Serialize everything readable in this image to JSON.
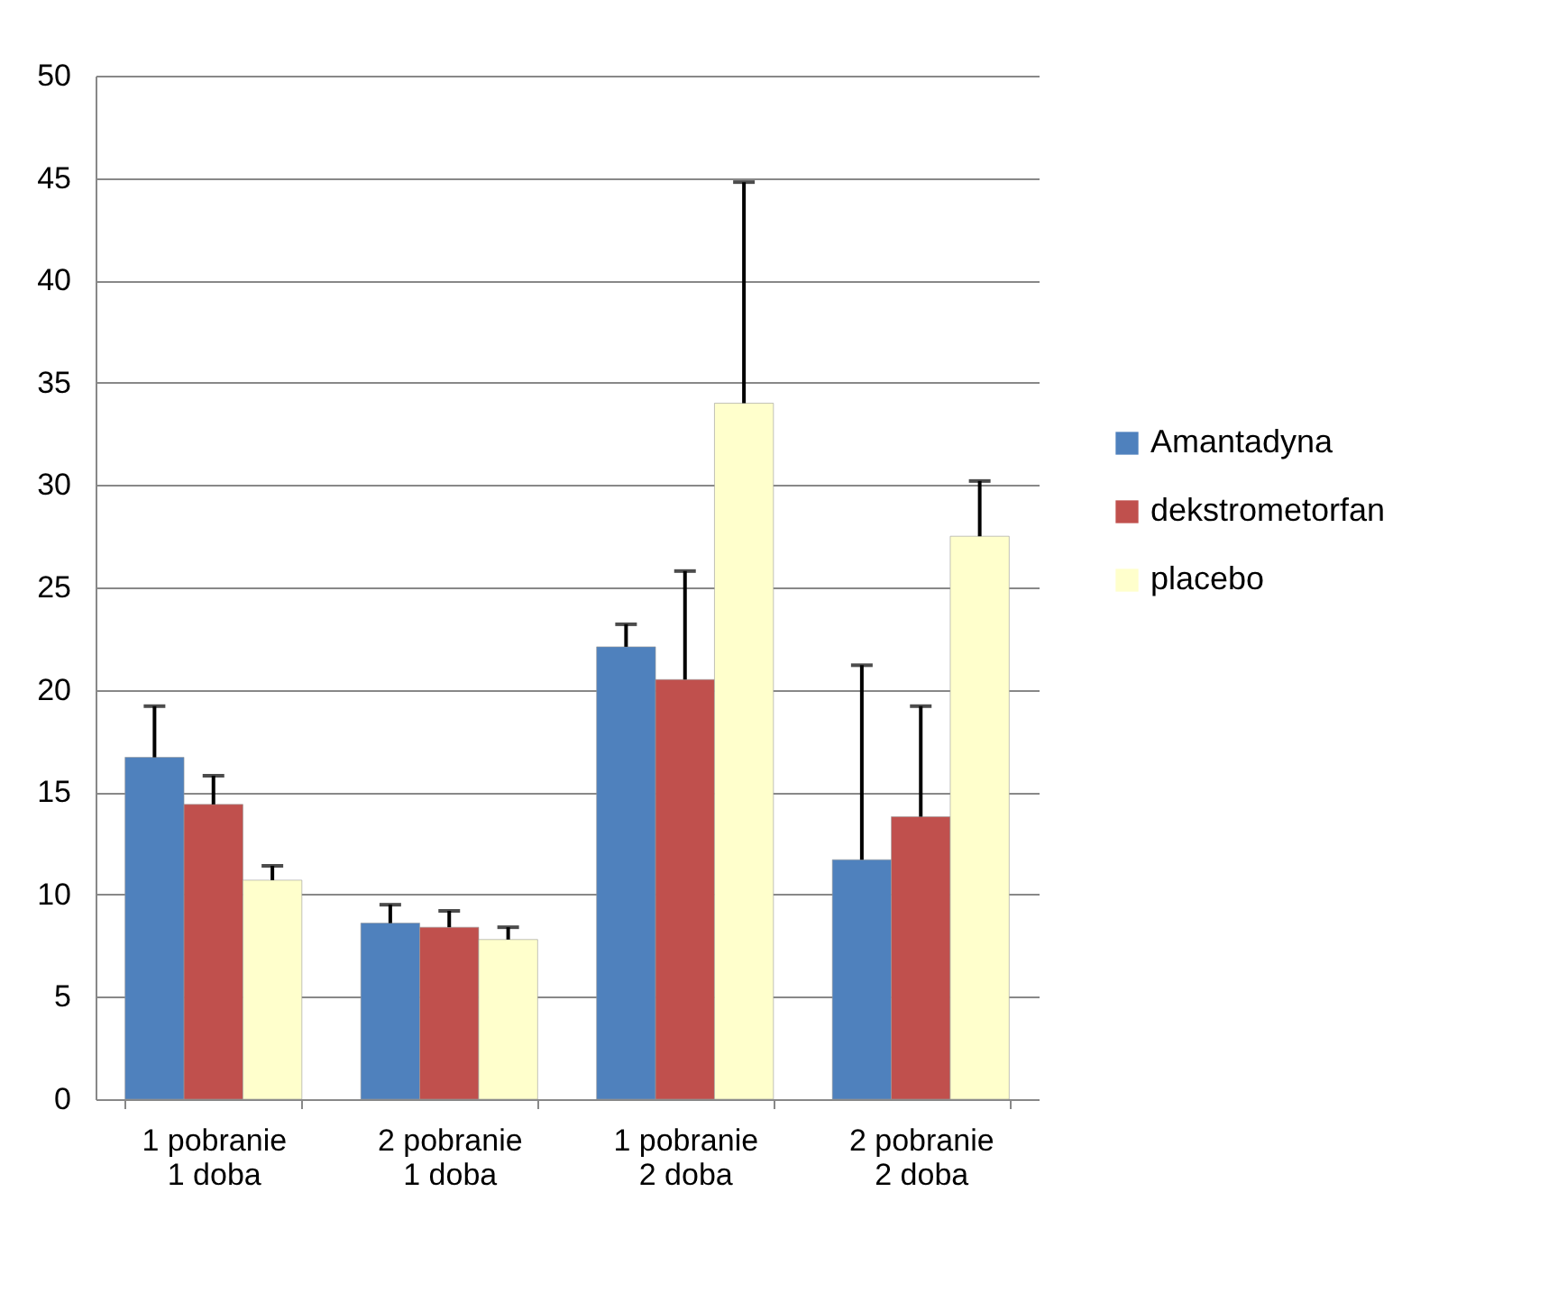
{
  "chart_data": {
    "type": "bar",
    "categories": [
      "1 pobranie\n1 doba",
      "2 pobranie\n1 doba",
      "1 pobranie\n2 doba",
      "2 pobranie\n2 doba"
    ],
    "series": [
      {
        "name": "Amantadyna",
        "color": "#4f81bd",
        "values": [
          16.7,
          8.6,
          22.1,
          11.7
        ],
        "errors": [
          [
            16.7,
            19.2
          ],
          [
            8.6,
            9.5
          ],
          [
            22.1,
            23.2
          ],
          [
            11.7,
            21.2
          ]
        ]
      },
      {
        "name": "dekstrometorfan",
        "color": "#c0504d",
        "values": [
          14.4,
          8.4,
          20.5,
          13.8
        ],
        "errors": [
          [
            14.4,
            15.8
          ],
          [
            8.4,
            9.2
          ],
          [
            20.5,
            25.8
          ],
          [
            13.8,
            19.2
          ]
        ]
      },
      {
        "name": "placebo",
        "color": "#ffffcc",
        "values": [
          10.7,
          7.8,
          34.0,
          27.5
        ],
        "errors": [
          [
            10.7,
            11.4
          ],
          [
            7.8,
            8.4
          ],
          [
            34.0,
            44.8
          ],
          [
            27.5,
            30.2
          ]
        ]
      }
    ],
    "ylim": [
      0,
      50
    ],
    "yticks": [
      0,
      5,
      10,
      15,
      20,
      25,
      30,
      35,
      40,
      45,
      50
    ],
    "grid": "y",
    "legend": "right"
  }
}
